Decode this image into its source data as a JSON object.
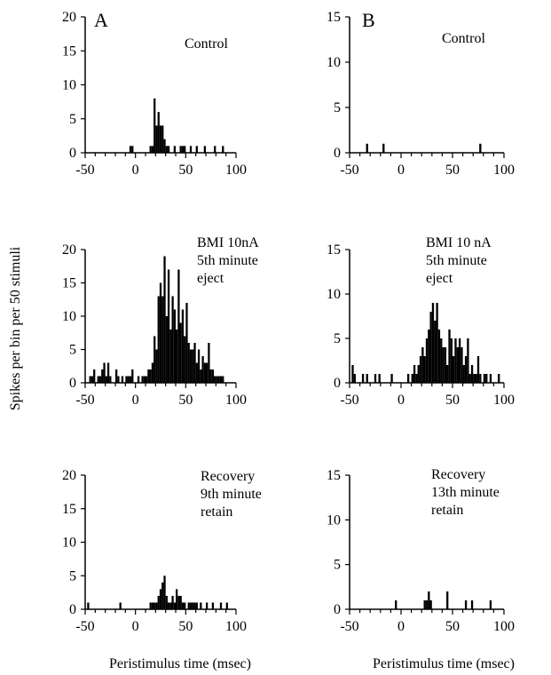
{
  "figure": {
    "ylabel": "Spikes per bin per 50 stimuli",
    "xlabel_left": "Peristimulus time (msec)",
    "xlabel_right": "Peristimulus time (msec)"
  },
  "chart_data": [
    {
      "type": "bar",
      "panel_label": "A",
      "annotation": [
        "Control"
      ],
      "xlim": [
        -50,
        100
      ],
      "ylim": [
        0,
        20
      ],
      "xticks": [
        -50,
        0,
        50,
        100
      ],
      "yticks": [
        0,
        5,
        10,
        15,
        20
      ],
      "bin_width": 2,
      "bins": [
        [
          -6,
          1
        ],
        [
          -4,
          1
        ],
        [
          14,
          1
        ],
        [
          16,
          1
        ],
        [
          18,
          8
        ],
        [
          20,
          4
        ],
        [
          22,
          6
        ],
        [
          24,
          4
        ],
        [
          26,
          4
        ],
        [
          28,
          2
        ],
        [
          30,
          1
        ],
        [
          32,
          1
        ],
        [
          38,
          1
        ],
        [
          44,
          1
        ],
        [
          46,
          1
        ],
        [
          48,
          1
        ],
        [
          54,
          1
        ],
        [
          60,
          1
        ],
        [
          68,
          1
        ],
        [
          78,
          1
        ],
        [
          86,
          1
        ]
      ]
    },
    {
      "type": "bar",
      "panel_label": "B",
      "annotation": [
        "Control"
      ],
      "xlim": [
        -50,
        100
      ],
      "ylim": [
        0,
        15
      ],
      "xticks": [
        -50,
        0,
        50,
        100
      ],
      "yticks": [
        0,
        5,
        10,
        15
      ],
      "bin_width": 2,
      "bins": [
        [
          -34,
          1
        ],
        [
          -18,
          1
        ],
        [
          76,
          1
        ]
      ]
    },
    {
      "type": "bar",
      "panel_label": "",
      "annotation": [
        "BMI 10nA",
        "5th minute",
        "eject"
      ],
      "xlim": [
        -50,
        100
      ],
      "ylim": [
        0,
        20
      ],
      "xticks": [
        -50,
        0,
        50,
        100
      ],
      "yticks": [
        0,
        5,
        10,
        15,
        20
      ],
      "bin_width": 2,
      "bins": [
        [
          -46,
          1
        ],
        [
          -44,
          1
        ],
        [
          -42,
          2
        ],
        [
          -38,
          1
        ],
        [
          -36,
          1
        ],
        [
          -34,
          2
        ],
        [
          -32,
          3
        ],
        [
          -30,
          1
        ],
        [
          -28,
          3
        ],
        [
          -26,
          1
        ],
        [
          -20,
          2
        ],
        [
          -18,
          1
        ],
        [
          -14,
          1
        ],
        [
          -10,
          1
        ],
        [
          -8,
          1
        ],
        [
          -6,
          1
        ],
        [
          -4,
          2
        ],
        [
          2,
          1
        ],
        [
          6,
          1
        ],
        [
          8,
          1
        ],
        [
          10,
          1
        ],
        [
          12,
          2
        ],
        [
          14,
          2
        ],
        [
          16,
          3
        ],
        [
          18,
          7
        ],
        [
          20,
          5
        ],
        [
          22,
          13
        ],
        [
          24,
          15
        ],
        [
          26,
          13
        ],
        [
          28,
          19
        ],
        [
          30,
          10
        ],
        [
          32,
          17
        ],
        [
          34,
          8
        ],
        [
          36,
          13
        ],
        [
          38,
          11
        ],
        [
          40,
          8
        ],
        [
          42,
          17
        ],
        [
          44,
          9
        ],
        [
          46,
          11
        ],
        [
          48,
          7
        ],
        [
          50,
          12
        ],
        [
          52,
          6
        ],
        [
          54,
          5
        ],
        [
          56,
          5
        ],
        [
          58,
          6
        ],
        [
          60,
          3
        ],
        [
          62,
          5
        ],
        [
          64,
          2
        ],
        [
          66,
          4
        ],
        [
          68,
          3
        ],
        [
          70,
          3
        ],
        [
          72,
          6
        ],
        [
          74,
          2
        ],
        [
          76,
          2
        ],
        [
          78,
          1
        ],
        [
          80,
          1
        ],
        [
          82,
          1
        ],
        [
          84,
          1
        ],
        [
          86,
          1
        ]
      ]
    },
    {
      "type": "bar",
      "panel_label": "",
      "annotation": [
        "BMI 10 nA",
        "5th minute",
        "eject"
      ],
      "xlim": [
        -50,
        100
      ],
      "ylim": [
        0,
        15
      ],
      "xticks": [
        -50,
        0,
        50,
        100
      ],
      "yticks": [
        0,
        5,
        10,
        15
      ],
      "bin_width": 2,
      "bins": [
        [
          -48,
          2
        ],
        [
          -46,
          1
        ],
        [
          -38,
          1
        ],
        [
          -34,
          1
        ],
        [
          -26,
          1
        ],
        [
          -22,
          1
        ],
        [
          -10,
          1
        ],
        [
          6,
          1
        ],
        [
          10,
          1
        ],
        [
          12,
          2
        ],
        [
          14,
          1
        ],
        [
          16,
          2
        ],
        [
          18,
          3
        ],
        [
          20,
          4
        ],
        [
          22,
          3
        ],
        [
          24,
          5
        ],
        [
          26,
          6
        ],
        [
          28,
          8
        ],
        [
          30,
          9
        ],
        [
          32,
          7
        ],
        [
          34,
          9
        ],
        [
          36,
          6
        ],
        [
          38,
          5
        ],
        [
          40,
          4
        ],
        [
          42,
          4
        ],
        [
          44,
          2
        ],
        [
          46,
          6
        ],
        [
          48,
          5
        ],
        [
          50,
          3
        ],
        [
          52,
          5
        ],
        [
          54,
          4
        ],
        [
          56,
          5
        ],
        [
          58,
          4
        ],
        [
          60,
          2
        ],
        [
          62,
          3
        ],
        [
          64,
          5
        ],
        [
          66,
          1
        ],
        [
          68,
          2
        ],
        [
          70,
          1
        ],
        [
          72,
          1
        ],
        [
          74,
          3
        ],
        [
          76,
          1
        ],
        [
          80,
          1
        ],
        [
          82,
          1
        ],
        [
          86,
          1
        ],
        [
          94,
          1
        ]
      ]
    },
    {
      "type": "bar",
      "panel_label": "",
      "annotation": [
        "Recovery",
        "9th minute",
        "retain"
      ],
      "xlim": [
        -50,
        100
      ],
      "ylim": [
        0,
        20
      ],
      "xticks": [
        -50,
        0,
        50,
        100
      ],
      "yticks": [
        0,
        5,
        10,
        15,
        20
      ],
      "bin_width": 2,
      "bins": [
        [
          -48,
          1
        ],
        [
          -16,
          1
        ],
        [
          14,
          1
        ],
        [
          16,
          1
        ],
        [
          18,
          1
        ],
        [
          20,
          1
        ],
        [
          22,
          2
        ],
        [
          24,
          3
        ],
        [
          26,
          4
        ],
        [
          28,
          5
        ],
        [
          30,
          2
        ],
        [
          32,
          1
        ],
        [
          34,
          1
        ],
        [
          36,
          2
        ],
        [
          38,
          1
        ],
        [
          40,
          3
        ],
        [
          42,
          2
        ],
        [
          44,
          2
        ],
        [
          46,
          1
        ],
        [
          48,
          1
        ],
        [
          52,
          1
        ],
        [
          54,
          1
        ],
        [
          56,
          1
        ],
        [
          58,
          1
        ],
        [
          60,
          1
        ],
        [
          64,
          1
        ],
        [
          70,
          1
        ],
        [
          76,
          1
        ],
        [
          84,
          1
        ],
        [
          90,
          1
        ]
      ]
    },
    {
      "type": "bar",
      "panel_label": "",
      "annotation": [
        "Recovery",
        "13th  minute",
        "retain"
      ],
      "xlim": [
        -50,
        100
      ],
      "ylim": [
        0,
        15
      ],
      "xticks": [
        -50,
        0,
        50,
        100
      ],
      "yticks": [
        0,
        5,
        10,
        15
      ],
      "bin_width": 2,
      "bins": [
        [
          -6,
          1
        ],
        [
          22,
          1
        ],
        [
          24,
          1
        ],
        [
          26,
          2
        ],
        [
          28,
          1
        ],
        [
          44,
          2
        ],
        [
          62,
          1
        ],
        [
          68,
          1
        ],
        [
          86,
          1
        ]
      ]
    }
  ]
}
